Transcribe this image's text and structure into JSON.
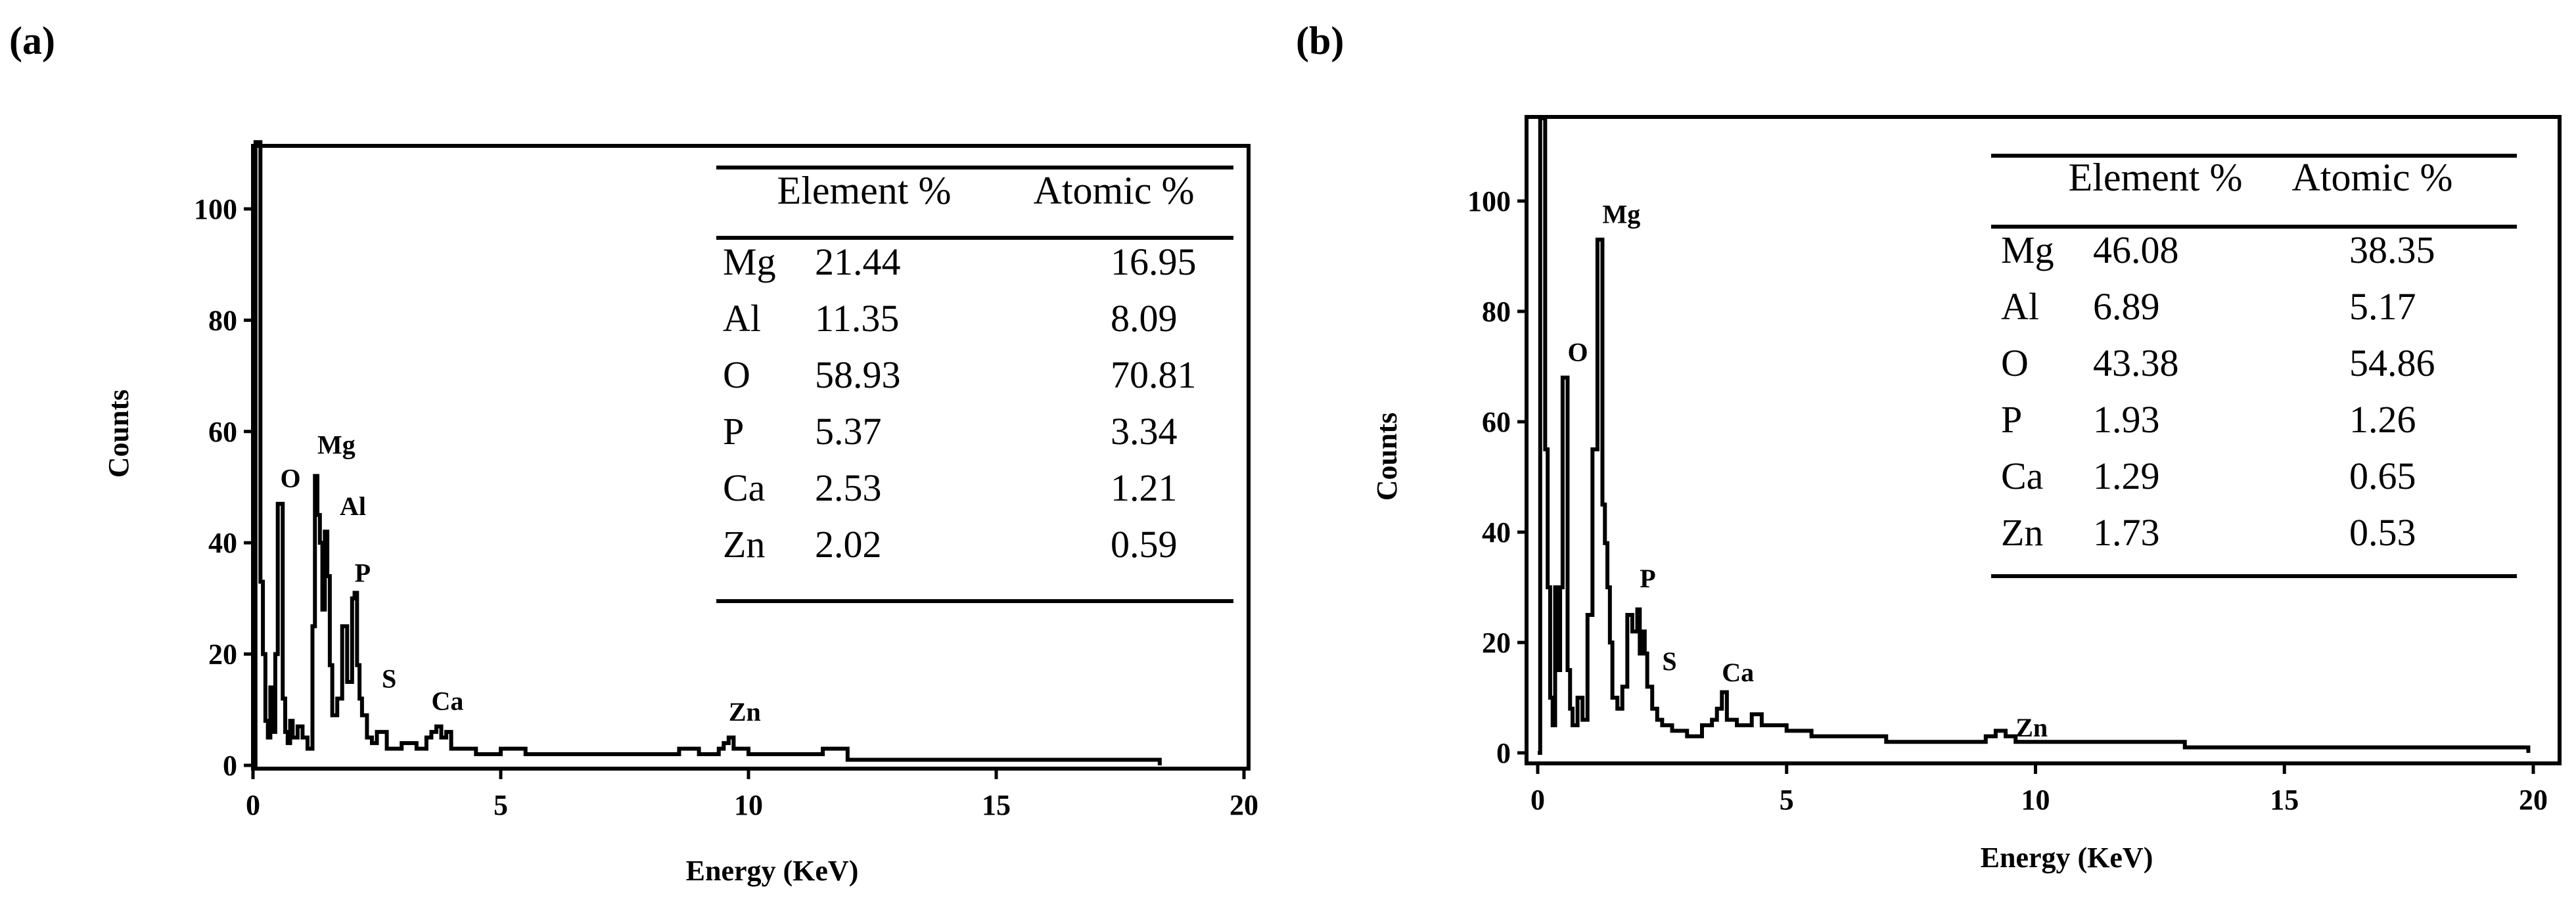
{
  "figure": {
    "panels": [
      {
        "label": "(a)",
        "table": {
          "headers": [
            "",
            "Element %",
            "Atomic %"
          ],
          "rows": [
            {
              "el": "Mg",
              "element": "21.44",
              "atomic": "16.95"
            },
            {
              "el": "Al",
              "element": "11.35",
              "atomic": "8.09"
            },
            {
              "el": "O",
              "element": "58.93",
              "atomic": "70.81"
            },
            {
              "el": "P",
              "element": "5.37",
              "atomic": "3.34"
            },
            {
              "el": "Ca",
              "element": "2.53",
              "atomic": "1.21"
            },
            {
              "el": "Zn",
              "element": "2.02",
              "atomic": "0.59"
            }
          ]
        }
      },
      {
        "label": "(b)",
        "table": {
          "headers": [
            "",
            "Element %",
            "Atomic %"
          ],
          "rows": [
            {
              "el": "Mg",
              "element": "46.08",
              "atomic": "38.35"
            },
            {
              "el": "Al",
              "element": "6.89",
              "atomic": "5.17"
            },
            {
              "el": "O",
              "element": "43.38",
              "atomic": "54.86"
            },
            {
              "el": "P",
              "element": "1.93",
              "atomic": "1.26"
            },
            {
              "el": "Ca",
              "element": "1.29",
              "atomic": "0.65"
            },
            {
              "el": "Zn",
              "element": "1.73",
              "atomic": "0.53"
            }
          ]
        }
      }
    ]
  },
  "chart_data": [
    {
      "type": "line",
      "xlabel": "Energy (KeV)",
      "ylabel": "Counts",
      "xlim": [
        0,
        20
      ],
      "ylim": [
        0,
        112
      ],
      "xticks": [
        0,
        5,
        10,
        15,
        20
      ],
      "yticks": [
        0,
        20,
        40,
        60,
        80,
        100
      ],
      "grid": false,
      "series": [
        {
          "x": [
            0.0,
            0.05,
            0.1,
            0.15,
            0.2,
            0.25,
            0.3,
            0.35,
            0.4,
            0.45,
            0.5,
            0.55,
            0.6,
            0.65,
            0.7,
            0.75,
            0.8,
            0.9,
            1.0,
            1.1,
            1.2,
            1.25,
            1.3,
            1.35,
            1.4,
            1.45,
            1.5,
            1.55,
            1.6,
            1.7,
            1.8,
            1.9,
            2.0,
            2.05,
            2.1,
            2.15,
            2.2,
            2.3,
            2.4,
            2.5,
            2.7,
            3.0,
            3.3,
            3.5,
            3.6,
            3.7,
            3.8,
            3.9,
            4.0,
            4.5,
            5.0,
            5.5,
            6.0,
            7.0,
            8.0,
            8.6,
            9.0,
            9.4,
            9.5,
            9.6,
            9.7,
            10.0,
            11.0,
            11.5,
            12.0,
            13.0,
            14.0,
            15.0,
            16.0,
            17.0,
            18.0,
            18.3
          ],
          "y": [
            0,
            112,
            112,
            33,
            20,
            8,
            5,
            14,
            6,
            20,
            47,
            47,
            12,
            6,
            4,
            8,
            5,
            7,
            5,
            3,
            25,
            52,
            45,
            40,
            28,
            42,
            34,
            18,
            9,
            12,
            25,
            15,
            30,
            31,
            18,
            12,
            9,
            5,
            4,
            6,
            3,
            4,
            3,
            5,
            6,
            7,
            5,
            6,
            3,
            2,
            3,
            2,
            2,
            2,
            2,
            3,
            2,
            3,
            4,
            5,
            3,
            2,
            2,
            3,
            1,
            1,
            1,
            1,
            1,
            1,
            1,
            0
          ]
        }
      ],
      "annotations": [
        {
          "text": "O",
          "x": 0.55,
          "y": 50
        },
        {
          "text": "Mg",
          "x": 1.3,
          "y": 56
        },
        {
          "text": "Al",
          "x": 1.75,
          "y": 45
        },
        {
          "text": "P",
          "x": 2.05,
          "y": 33
        },
        {
          "text": "S",
          "x": 2.6,
          "y": 14
        },
        {
          "text": "Ca",
          "x": 3.6,
          "y": 10
        },
        {
          "text": "Zn",
          "x": 9.6,
          "y": 8
        }
      ]
    },
    {
      "type": "line",
      "xlabel": "Energy (KeV)",
      "ylabel": "Counts",
      "xlim": [
        0,
        20
      ],
      "ylim": [
        0,
        115
      ],
      "xticks": [
        0,
        5,
        10,
        15,
        20
      ],
      "yticks": [
        0,
        20,
        40,
        60,
        80,
        100
      ],
      "grid": false,
      "series": [
        {
          "x": [
            0.0,
            0.05,
            0.1,
            0.15,
            0.2,
            0.25,
            0.3,
            0.35,
            0.4,
            0.45,
            0.5,
            0.55,
            0.6,
            0.65,
            0.7,
            0.8,
            0.9,
            1.0,
            1.1,
            1.2,
            1.25,
            1.3,
            1.35,
            1.4,
            1.45,
            1.5,
            1.6,
            1.7,
            1.8,
            1.9,
            2.0,
            2.05,
            2.1,
            2.15,
            2.2,
            2.3,
            2.4,
            2.5,
            2.7,
            3.0,
            3.3,
            3.5,
            3.6,
            3.7,
            3.8,
            4.0,
            4.3,
            4.5,
            5.0,
            5.5,
            6.0,
            7.0,
            8.0,
            9.0,
            9.2,
            9.4,
            9.6,
            10.0,
            11.0,
            12.0,
            13.0,
            14.0,
            15.0,
            16.0,
            17.0,
            18.0,
            19.0,
            19.9
          ],
          "y": [
            0,
            115,
            115,
            55,
            30,
            10,
            5,
            30,
            15,
            30,
            68,
            68,
            15,
            8,
            5,
            10,
            6,
            25,
            55,
            93,
            93,
            45,
            38,
            30,
            20,
            10,
            8,
            12,
            25,
            22,
            26,
            18,
            22,
            18,
            12,
            8,
            6,
            5,
            4,
            3,
            5,
            6,
            8,
            11,
            6,
            5,
            7,
            5,
            4,
            3,
            3,
            2,
            2,
            3,
            4,
            3,
            2,
            2,
            2,
            2,
            1,
            1,
            1,
            1,
            1,
            1,
            1,
            0
          ]
        }
      ],
      "annotations": [
        {
          "text": "O",
          "x": 0.6,
          "y": 71
        },
        {
          "text": "Mg",
          "x": 1.3,
          "y": 96
        },
        {
          "text": "P",
          "x": 2.05,
          "y": 30
        },
        {
          "text": "S",
          "x": 2.5,
          "y": 15
        },
        {
          "text": "Ca",
          "x": 3.7,
          "y": 13
        },
        {
          "text": "Zn",
          "x": 9.6,
          "y": 3
        }
      ]
    }
  ]
}
